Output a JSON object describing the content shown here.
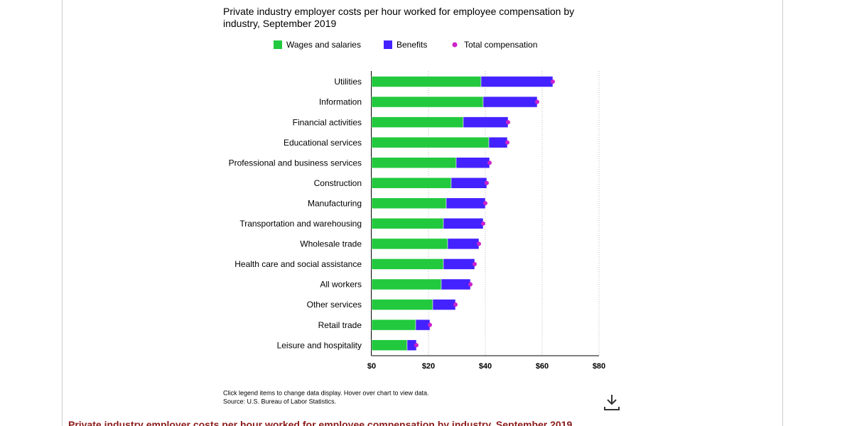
{
  "chart_data": {
    "type": "bar",
    "title": "Private industry employer costs per hour worked for employee compensation by industry, September 2019",
    "categories": [
      "Utilities",
      "Information",
      "Financial activities",
      "Educational services",
      "Professional and business services",
      "Construction",
      "Manufacturing",
      "Transportation and warehousing",
      "Wholesale trade",
      "Health care and social assistance",
      "All workers",
      "Other services",
      "Retail trade",
      "Leisure and hospitality"
    ],
    "series": [
      {
        "name": "Wages and salaries",
        "color": "#22c93e",
        "values": [
          38.5,
          39.25,
          32.25,
          41.25,
          29.75,
          28,
          26.25,
          25.25,
          26.75,
          25.25,
          24.5,
          21.5,
          15.5,
          12.5
        ]
      },
      {
        "name": "Benefits",
        "color": "#4422ff",
        "values": [
          25.25,
          19,
          15.75,
          6.5,
          11.75,
          12.5,
          13.75,
          14,
          11,
          11,
          10.25,
          8,
          5,
          3.25
        ]
      },
      {
        "name": "Total compensation",
        "color": "#cc22cc",
        "values": [
          63.75,
          58.25,
          48,
          47.75,
          41.5,
          40.5,
          40,
          39.25,
          37.75,
          36.25,
          34.75,
          29.5,
          20.5,
          15.75
        ]
      }
    ],
    "xlim": [
      0,
      80
    ],
    "xticks": [
      {
        "value": 0,
        "label": "$0"
      },
      {
        "value": 20,
        "label": "$20"
      },
      {
        "value": 40,
        "label": "$40"
      },
      {
        "value": 60,
        "label": "$60"
      },
      {
        "value": 80,
        "label": "$80"
      }
    ],
    "grid": true,
    "notes": [
      "Click legend items to change data display. Hover over chart to view data.",
      "Source: U.S. Bureau of Labor Statistics."
    ],
    "caption": "Private industry employer costs per hour worked for employee compensation by industry, September 2019"
  }
}
